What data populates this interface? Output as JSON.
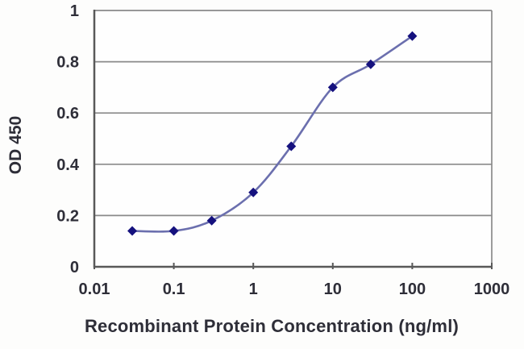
{
  "chart_data": {
    "type": "line",
    "title": "",
    "xlabel": "Recombinant Protein Concentration (ng/ml)",
    "ylabel": "OD 450",
    "x_scale": "log10",
    "xlim": [
      0.01,
      1000
    ],
    "ylim": [
      0,
      1
    ],
    "x_ticks": {
      "values": [
        0.01,
        0.1,
        1,
        10,
        100,
        1000
      ],
      "labels": [
        "0.01",
        "0.1",
        "1",
        "10",
        "100",
        "1000"
      ]
    },
    "y_ticks": {
      "values": [
        0,
        0.2,
        0.4,
        0.6,
        0.8,
        1
      ],
      "labels": [
        "0",
        "0.2",
        "0.4",
        "0.6",
        "0.8",
        "1"
      ]
    },
    "grid": "horizontal",
    "legend": "none",
    "series": [
      {
        "name": "OD 450",
        "x": [
          0.03,
          0.1,
          0.3,
          1,
          3,
          10,
          30,
          100
        ],
        "y": [
          0.14,
          0.14,
          0.18,
          0.29,
          0.47,
          0.7,
          0.79,
          0.9
        ],
        "marker": "diamond",
        "line_style": "smooth"
      }
    ]
  },
  "style": {
    "line_color": "#6b6fae",
    "marker_color": "#15117e",
    "grid_color": "#8a8a8a",
    "axis_color": "#595959",
    "text_color": "#2e2e38",
    "plot_background": "#fefefe",
    "page_background": "#fdfdfc"
  }
}
